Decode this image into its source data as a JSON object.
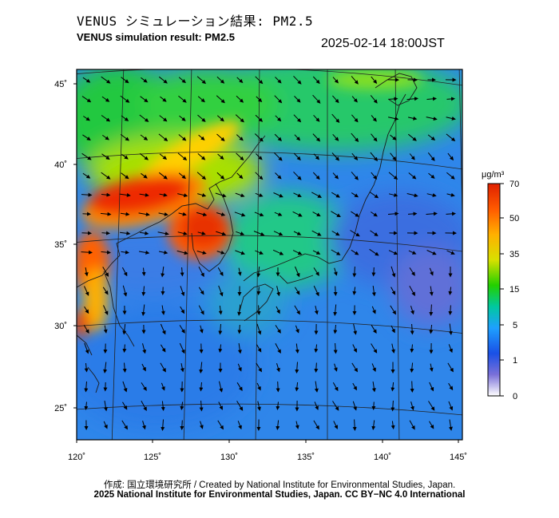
{
  "title_jp": "VENUS シミュレーション結果: PM2.5",
  "title_en": "VENUS simulation result: PM2.5",
  "timestamp": "2025-02-14 18:00JST",
  "map": {
    "lat_ticks": [
      "45˚",
      "40˚",
      "35˚",
      "30˚",
      "25˚"
    ],
    "lon_ticks": [
      "120˚",
      "125˚",
      "130˚",
      "135˚",
      "140˚",
      "145˚"
    ]
  },
  "colorbar": {
    "unit": "μg/m³",
    "tick_labels": [
      "70",
      "50",
      "35",
      "15",
      "5",
      "1",
      "0"
    ],
    "colors": [
      "#e02000",
      "#ff6a00",
      "#ffd000",
      "#8ee000",
      "#16d000",
      "#00c8a0",
      "#1ea0ff",
      "#1a50e6",
      "#6a60d8",
      "#ffffff"
    ]
  },
  "credit_jp": "作成: 国立環境研究所 / Created by National Institute for Environmental Studies, Japan.",
  "credit_en": "2025 National Institute for Environmental Studies, Japan. CC BY−NC 4.0 International"
}
